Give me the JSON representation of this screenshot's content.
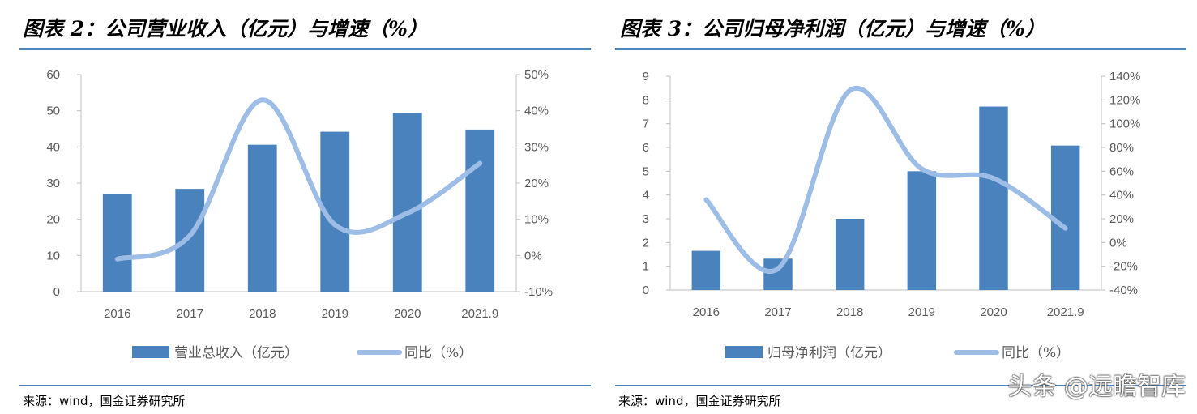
{
  "panels": [
    {
      "title": "图表 2：公司营业收入（亿元）与增速（%）",
      "source": "来源：wind，国金证券研究所",
      "legend": {
        "bar": "营业总收入（亿元）",
        "line": "同比（%）"
      },
      "chart_data": {
        "type": "bar",
        "categories": [
          "2016",
          "2017",
          "2018",
          "2019",
          "2020",
          "2021.9"
        ],
        "series": [
          {
            "name": "营业总收入（亿元）",
            "type": "bar",
            "axis": "left",
            "values": [
              26.9,
              28.4,
              40.6,
              44.2,
              49.4,
              44.8
            ]
          },
          {
            "name": "同比（%）",
            "type": "line",
            "axis": "right",
            "values": [
              -1.0,
              5.5,
              43.0,
              8.5,
              11.7,
              25.5
            ]
          }
        ],
        "ylim_left": [
          0,
          60
        ],
        "yticks_left": [
          "0",
          "10",
          "20",
          "30",
          "40",
          "50",
          "60"
        ],
        "ylim_right": [
          -10,
          50
        ],
        "yticks_right": [
          "-10%",
          "0%",
          "10%",
          "20%",
          "30%",
          "40%",
          "50%"
        ],
        "grid": false,
        "legend_position": "bottom"
      }
    },
    {
      "title": "图表 3：公司归母净利润（亿元）与增速（%）",
      "source": "来源：wind，国金证券研究所",
      "legend": {
        "bar": "归母净利润（亿元）",
        "line": "同比（%）"
      },
      "chart_data": {
        "type": "bar",
        "categories": [
          "2016",
          "2017",
          "2018",
          "2019",
          "2020",
          "2021.9"
        ],
        "series": [
          {
            "name": "归母净利润（亿元）",
            "type": "bar",
            "axis": "left",
            "values": [
              1.65,
              1.32,
              3.0,
              5.0,
              7.72,
              6.08
            ]
          },
          {
            "name": "同比（%）",
            "type": "line",
            "axis": "right",
            "values": [
              36.0,
              -22.0,
              128.0,
              62.0,
              54.0,
              12.0
            ]
          }
        ],
        "ylim_left": [
          0,
          9
        ],
        "yticks_left": [
          "0",
          "1",
          "2",
          "3",
          "4",
          "5",
          "6",
          "7",
          "8",
          "9"
        ],
        "ylim_right": [
          -40,
          140
        ],
        "yticks_right": [
          "-40%",
          "-20%",
          "0%",
          "20%",
          "40%",
          "60%",
          "80%",
          "100%",
          "120%",
          "140%"
        ],
        "grid": false,
        "legend_position": "bottom"
      }
    }
  ],
  "watermark": "头条 @远瞻智库",
  "colors": {
    "bar": "#4a82bd",
    "line": "#9dbde6",
    "rule": "#4a82c0",
    "axis": "#bfbfbf",
    "text": "#595959"
  }
}
